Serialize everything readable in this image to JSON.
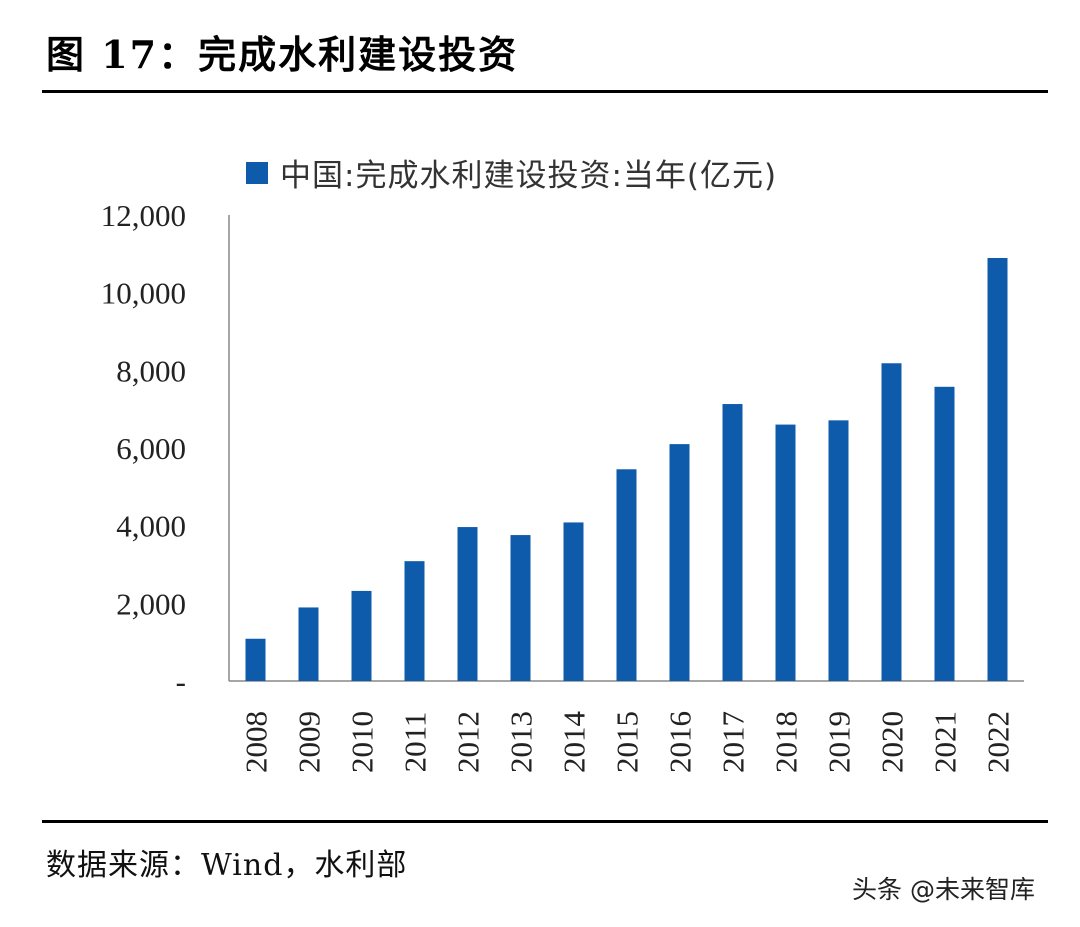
{
  "figure": {
    "title": "图 17：完成水利建设投资",
    "source": "数据来源：Wind，水利部",
    "watermark": "头条 @未来智库"
  },
  "colors": {
    "bar": "#0f5bab",
    "axis": "#888888",
    "tick_text": "#222222"
  },
  "chart_data": {
    "type": "bar",
    "categories": [
      "2008",
      "2009",
      "2010",
      "2011",
      "2012",
      "2013",
      "2014",
      "2015",
      "2016",
      "2017",
      "2018",
      "2019",
      "2020",
      "2021",
      "2022"
    ],
    "series": [
      {
        "name": "中国:完成水利建设投资:当年(亿元)",
        "values": [
          1088,
          1894,
          2320,
          3086,
          3964,
          3758,
          4083,
          5452,
          6100,
          7132,
          6603,
          6712,
          8182,
          7576,
          10893
        ]
      }
    ],
    "ylim": [
      0,
      12000
    ],
    "yticks": [
      {
        "value": 0,
        "label": "-"
      },
      {
        "value": 2000,
        "label": "2,000"
      },
      {
        "value": 4000,
        "label": "4,000"
      },
      {
        "value": 6000,
        "label": "6,000"
      },
      {
        "value": 8000,
        "label": "8,000"
      },
      {
        "value": 10000,
        "label": "10,000"
      },
      {
        "value": 12000,
        "label": "12,000"
      }
    ],
    "xlabel_rotation": "vertical",
    "legend_position": "top",
    "grid": false
  }
}
